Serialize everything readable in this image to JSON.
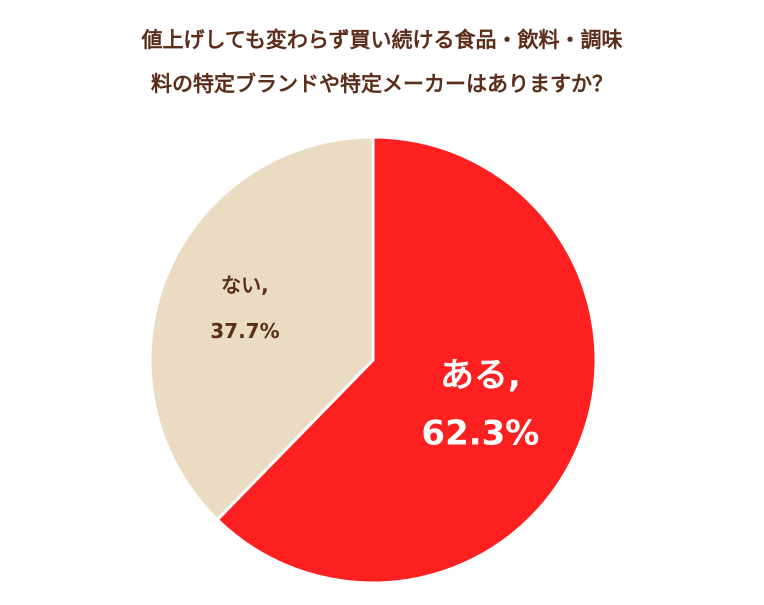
{
  "chart_data": {
    "type": "pie",
    "title_lines": [
      "値上げしても変わらず買い続ける食品・飲料・調味",
      "料の特定ブランドや特定メーカーはありますか？"
    ],
    "slices": [
      {
        "label": "ある,",
        "value": 62.3,
        "value_text": "62.3%",
        "color": "#fc2120",
        "text_color": "#ffffff"
      },
      {
        "label": "ない,",
        "value": 37.7,
        "value_text": "37.7%",
        "color": "#e9dcc2",
        "text_color": "#5a2e1b"
      }
    ],
    "start": "top, clockwise"
  }
}
